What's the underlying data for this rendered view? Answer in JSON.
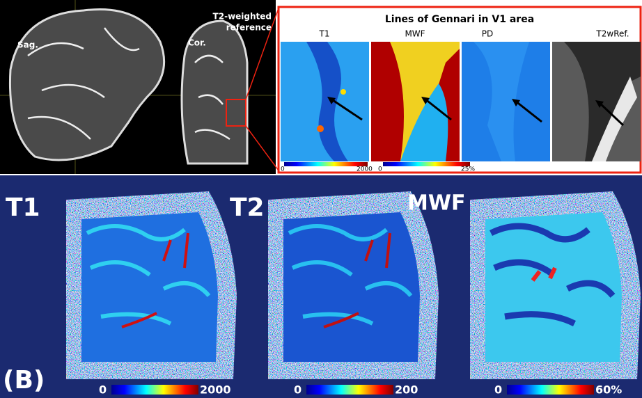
{
  "panel_a": {
    "sagittal_label": "Sag.",
    "coronal_label": "Cor.",
    "reference_label": [
      "T2-weighted",
      "reference"
    ],
    "inset": {
      "title": "Lines of Gennari in V1 area",
      "maps": [
        {
          "label": "T1"
        },
        {
          "label": "MWF"
        },
        {
          "label": "PD"
        },
        {
          "label": "T2wRef."
        }
      ],
      "colorbars": [
        {
          "min": 0,
          "max": 2000
        },
        {
          "min": 0,
          "max": "25%"
        }
      ]
    }
  },
  "panel_b": {
    "label": "(B)",
    "maps": [
      {
        "label": "T1",
        "colorbar_min": 0,
        "colorbar_max": 2000
      },
      {
        "label": "T2",
        "colorbar_min": 0,
        "colorbar_max": 200
      },
      {
        "label": "MWF",
        "colorbar_min": 0,
        "colorbar_max": "60%"
      }
    ]
  }
}
